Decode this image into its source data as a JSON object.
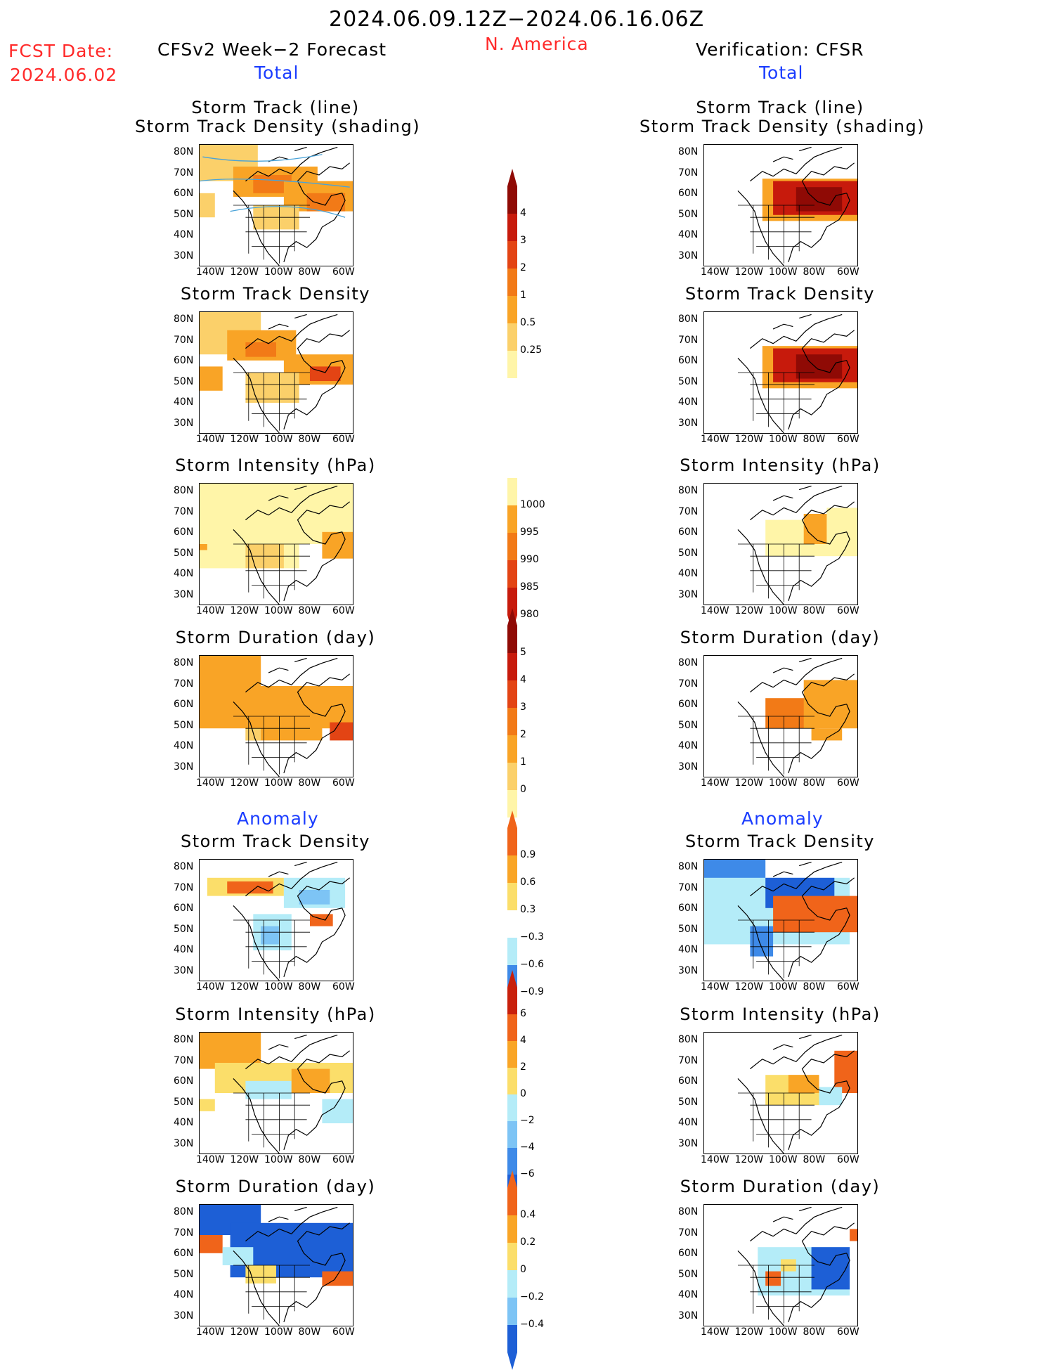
{
  "header": {
    "period": "2024.06.09.12Z−2024.06.16.06Z",
    "fcst_label": "FCST Date:",
    "fcst_date": "2024.06.02",
    "forecast_title": "CFSv2 Week−2 Forecast",
    "region": "N. America",
    "verification_title": "Verification: CFSR",
    "total_left": "Total",
    "total_right": "Total",
    "anomaly_left": "Anomaly",
    "anomaly_right": "Anomaly"
  },
  "panel_titles": {
    "storm_track_line": "Storm Track (line)",
    "storm_track_shading": "Storm Track Density (shading)",
    "density": "Storm Track Density",
    "intensity": "Storm Intensity (hPa)",
    "duration": "Storm Duration (day)"
  },
  "axes": {
    "lat_labels": [
      "80N",
      "70N",
      "60N",
      "50N",
      "40N",
      "30N"
    ],
    "lon_labels": [
      "140W",
      "120W",
      "100W",
      "80W",
      "60W"
    ]
  },
  "colorbars": {
    "density_total": [
      "4",
      "3",
      "2",
      "1",
      "0.5",
      "0.25"
    ],
    "intensity_total": [
      "1000",
      "995",
      "990",
      "985",
      "980"
    ],
    "duration_total": [
      "5",
      "4",
      "3",
      "2",
      "1",
      "0"
    ],
    "density_anom": [
      "0.9",
      "0.6",
      "0.3",
      "−0.3",
      "−0.6",
      "−0.9"
    ],
    "intensity_anom": [
      "6",
      "4",
      "2",
      "0",
      "−2",
      "−4",
      "−6"
    ],
    "duration_anom": [
      "0.4",
      "0.2",
      "0",
      "−0.2",
      "−0.4"
    ]
  },
  "colors": {
    "seq": [
      "#fff5a8",
      "#fbd06a",
      "#f9a426",
      "#f27a17",
      "#e34414",
      "#c71a0c",
      "#8f0a05"
    ],
    "div_pos": [
      "#fbde6a",
      "#f9a526",
      "#f0641a"
    ],
    "div_neg": [
      "#b4ecf8",
      "#7dc4f5",
      "#3e8ae8",
      "#1d5fd6"
    ],
    "track_line": "#4aa3d8"
  }
}
